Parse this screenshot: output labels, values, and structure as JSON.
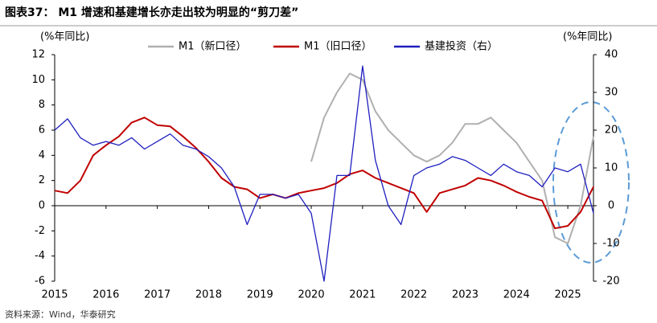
{
  "chart_data": {
    "type": "line",
    "title": "图表37： M1 增速和基建增长亦走出较为明显的“剪刀差”",
    "ylabel": "(%年同比)",
    "y2label": "(%年同比)",
    "source": "资料来源：Wind，华泰研究",
    "x": [
      2015,
      2015.25,
      2015.5,
      2015.75,
      2016,
      2016.25,
      2016.5,
      2016.75,
      2017,
      2017.25,
      2017.5,
      2017.75,
      2018,
      2018.25,
      2018.5,
      2018.75,
      2019,
      2019.25,
      2019.5,
      2019.75,
      2020,
      2020.25,
      2020.5,
      2020.75,
      2021,
      2021.25,
      2021.5,
      2021.75,
      2022,
      2022.25,
      2022.5,
      2022.75,
      2023,
      2023.25,
      2023.5,
      2023.75,
      2024,
      2024.25,
      2024.5,
      2024.75,
      2025,
      2025.25,
      2025.5
    ],
    "series": [
      {
        "name": "M1（新口径）",
        "color": "#b0b0b0",
        "values": [
          null,
          null,
          null,
          null,
          null,
          null,
          null,
          null,
          null,
          null,
          null,
          null,
          null,
          null,
          null,
          null,
          null,
          null,
          null,
          null,
          3.5,
          7,
          9,
          10.5,
          10,
          7.5,
          6,
          5,
          4,
          3.5,
          4,
          5,
          6.5,
          6.5,
          7,
          6,
          5,
          3.5,
          2,
          -2.5,
          -3,
          0,
          5.5
        ]
      },
      {
        "name": "M1（旧口径）",
        "color": "#c00000",
        "values": [
          1.2,
          1,
          2,
          4,
          4.8,
          5.5,
          6.6,
          7,
          6.4,
          6.3,
          5.5,
          4.6,
          3.5,
          2.2,
          1.5,
          1.3,
          0.6,
          0.9,
          0.6,
          1,
          1.2,
          1.4,
          1.8,
          2.5,
          2.8,
          2.2,
          1.8,
          1.4,
          1,
          -0.5,
          1,
          1.3,
          1.6,
          2.2,
          2,
          1.6,
          1.1,
          0.7,
          0.4,
          -1.8,
          -1.6,
          -0.5,
          1.5
        ]
      },
      {
        "name": "基建投资（右）",
        "color": "#1f1fbf",
        "axis": "y2",
        "values": [
          20,
          23,
          18,
          16,
          17,
          16,
          18,
          15,
          17,
          19,
          16,
          15,
          13,
          10,
          5,
          -5,
          3,
          3,
          2,
          3,
          -2,
          -20,
          8,
          8,
          37,
          12,
          0,
          -5,
          8,
          10,
          11,
          13,
          12,
          10,
          8,
          11,
          9,
          8,
          5,
          10,
          9,
          11,
          -2
        ]
      }
    ],
    "xlim": [
      2015,
      2025.5
    ],
    "xticks": [
      2015,
      2016,
      2017,
      2018,
      2019,
      2020,
      2021,
      2022,
      2023,
      2024,
      2025
    ],
    "ylim": [
      -6,
      12
    ],
    "yticks": [
      -6,
      -4,
      -2,
      0,
      2,
      4,
      6,
      8,
      10,
      12
    ],
    "y2lim": [
      -20,
      40
    ],
    "y2ticks": [
      -20,
      -10,
      0,
      10,
      20,
      30,
      40
    ]
  }
}
